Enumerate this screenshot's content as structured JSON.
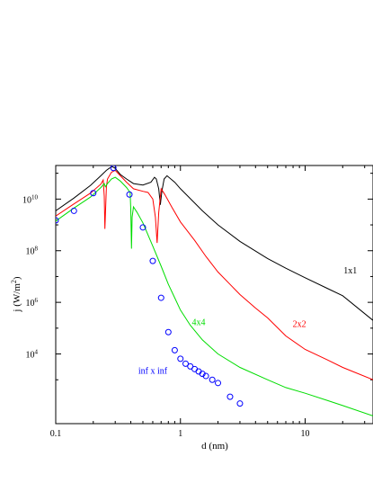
{
  "chart_data": {
    "type": "line",
    "xscale": "log",
    "yscale": "log",
    "xlabel": "d (nm)",
    "ylabel": "j (W/m^2)",
    "ylabel_base": "j (W/m",
    "ylabel_sup": "2",
    "ylabel_end": ")",
    "xlim": [
      0.1,
      35
    ],
    "ylim": [
      20,
      200000000000.0
    ],
    "x_ticks": [
      {
        "value": 0.1,
        "label": "0.1"
      },
      {
        "value": 1,
        "label": "1"
      },
      {
        "value": 10,
        "label": "10"
      }
    ],
    "y_ticks": [
      {
        "value": 10000,
        "base": "10",
        "exp": "4"
      },
      {
        "value": 1000000,
        "base": "10",
        "exp": "6"
      },
      {
        "value": 100000000,
        "base": "10",
        "exp": "8"
      },
      {
        "value": 10000000000,
        "base": "10",
        "exp": "10"
      }
    ],
    "series": [
      {
        "name": "1x1",
        "kind": "line",
        "color": "#000000",
        "label_at": {
          "x": 23,
          "y": 13000000.0
        },
        "points": [
          [
            0.1,
            3500000000.0
          ],
          [
            0.14,
            11000000000.0
          ],
          [
            0.19,
            34000000000.0
          ],
          [
            0.23,
            80000000000.0
          ],
          [
            0.255,
            130000000000.0
          ],
          [
            0.27,
            160000000000.0
          ],
          [
            0.285,
            180000000000.0
          ],
          [
            0.3,
            155000000000.0
          ],
          [
            0.33,
            90000000000.0
          ],
          [
            0.37,
            60000000000.0
          ],
          [
            0.42,
            40000000000.0
          ],
          [
            0.5,
            35000000000.0
          ],
          [
            0.58,
            45000000000.0
          ],
          [
            0.62,
            70000000000.0
          ],
          [
            0.64,
            60000000000.0
          ],
          [
            0.67,
            25000000000.0
          ],
          [
            0.69,
            6000000000.0
          ],
          [
            0.71,
            20000000000.0
          ],
          [
            0.74,
            60000000000.0
          ],
          [
            0.78,
            80000000000.0
          ],
          [
            0.9,
            45000000000.0
          ],
          [
            1,
            25000000000.0
          ],
          [
            1.5,
            3500000000.0
          ],
          [
            2,
            1000000000.0
          ],
          [
            3,
            230000000.0
          ],
          [
            5,
            50000000.0
          ],
          [
            7,
            21000000.0
          ],
          [
            10,
            9000000.0
          ],
          [
            15,
            3500000.0
          ],
          [
            20,
            1800000.0
          ],
          [
            35,
            200000.0
          ]
        ]
      },
      {
        "name": "2x2",
        "kind": "line",
        "color": "#ff0000",
        "label_at": {
          "x": 9,
          "y": 110000.0
        },
        "points": [
          [
            0.1,
            2200000000.0
          ],
          [
            0.14,
            6500000000.0
          ],
          [
            0.19,
            17000000000.0
          ],
          [
            0.23,
            38000000000.0
          ],
          [
            0.24,
            55000000000.0
          ],
          [
            0.245,
            13000000000.0
          ],
          [
            0.248,
            700000000.0
          ],
          [
            0.255,
            30000000000.0
          ],
          [
            0.26,
            60000000000.0
          ],
          [
            0.28,
            110000000000.0
          ],
          [
            0.3,
            130000000000.0
          ],
          [
            0.33,
            80000000000.0
          ],
          [
            0.37,
            45000000000.0
          ],
          [
            0.42,
            25000000000.0
          ],
          [
            0.5,
            20000000000.0
          ],
          [
            0.55,
            18000000000.0
          ],
          [
            0.6,
            10000000000.0
          ],
          [
            0.63,
            2000000000.0
          ],
          [
            0.65,
            200000000.0
          ],
          [
            0.67,
            3000000000.0
          ],
          [
            0.7,
            25000000000.0
          ],
          [
            0.75,
            15000000000.0
          ],
          [
            0.85,
            5000000000.0
          ],
          [
            1,
            1300000000.0
          ],
          [
            1.3,
            250000000.0
          ],
          [
            1.6,
            60000000.0
          ],
          [
            2,
            15000000.0
          ],
          [
            3,
            2000000.0
          ],
          [
            4,
            600000.0
          ],
          [
            5,
            250000.0
          ],
          [
            7,
            50000.0
          ],
          [
            10,
            15000.0
          ],
          [
            15,
            6000.0
          ],
          [
            20,
            3000.0
          ],
          [
            35,
            1000.0
          ]
        ]
      },
      {
        "name": "4x4",
        "kind": "line",
        "color": "#00dd00",
        "label_at": {
          "x": 1.4,
          "y": 130000.0
        },
        "points": [
          [
            0.1,
            1400000000.0
          ],
          [
            0.14,
            4500000000.0
          ],
          [
            0.19,
            12000000000.0
          ],
          [
            0.23,
            28000000000.0
          ],
          [
            0.245,
            40000000000.0
          ],
          [
            0.25,
            30000000000.0
          ],
          [
            0.26,
            40000000000.0
          ],
          [
            0.28,
            60000000000.0
          ],
          [
            0.3,
            70000000000.0
          ],
          [
            0.33,
            50000000000.0
          ],
          [
            0.37,
            28000000000.0
          ],
          [
            0.395,
            18000000000.0
          ],
          [
            0.4,
            4000000000.0
          ],
          [
            0.405,
            120000000.0
          ],
          [
            0.41,
            2000000000.0
          ],
          [
            0.42,
            5000000000.0
          ],
          [
            0.45,
            3000000000.0
          ],
          [
            0.5,
            1200000000.0
          ],
          [
            0.6,
            150000000.0
          ],
          [
            0.7,
            25000000.0
          ],
          [
            0.8,
            5000000.0
          ],
          [
            0.9,
            1500000.0
          ],
          [
            1,
            500000.0
          ],
          [
            1.2,
            130000.0
          ],
          [
            1.5,
            35000.0
          ],
          [
            2,
            10000.0
          ],
          [
            3,
            3000.0
          ],
          [
            5,
            1000.0
          ],
          [
            7,
            500
          ],
          [
            10,
            300
          ],
          [
            15,
            160
          ],
          [
            20,
            100
          ],
          [
            35,
            40
          ]
        ]
      },
      {
        "name": "inf x inf",
        "kind": "scatter",
        "color": "#0000ff",
        "label_at": {
          "x": 0.6,
          "y": 1700.0
        },
        "points": [
          [
            0.1,
            1500000000.0
          ],
          [
            0.14,
            3500000000.0
          ],
          [
            0.2,
            17000000000.0
          ],
          [
            0.29,
            160000000000.0
          ],
          [
            0.39,
            15000000000.0
          ],
          [
            0.5,
            800000000.0
          ],
          [
            0.6,
            40000000.0
          ],
          [
            0.7,
            1500000.0
          ],
          [
            0.8,
            70000.0
          ],
          [
            0.9,
            14000.0
          ],
          [
            1.0,
            6500.0
          ],
          [
            1.1,
            4200.0
          ],
          [
            1.2,
            3300.0
          ],
          [
            1.3,
            2600.0
          ],
          [
            1.4,
            2100.0
          ],
          [
            1.5,
            1700.0
          ],
          [
            1.6,
            1400.0
          ],
          [
            1.8,
            1000.0
          ],
          [
            2.0,
            750.0
          ],
          [
            2.5,
            220.0
          ],
          [
            3.0,
            120.0
          ]
        ]
      }
    ]
  }
}
